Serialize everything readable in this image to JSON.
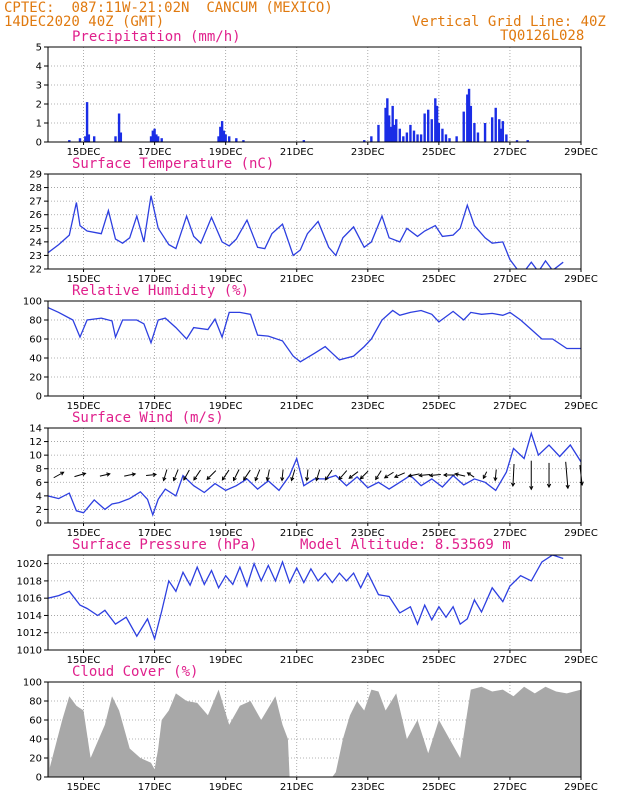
{
  "header": {
    "source": "CPTEC:",
    "coords": "087:11W-21:02N",
    "location": "CANCUM (MEXICO)",
    "start_time": "14DEC2020 40Z (GMT)",
    "grid_note": "Vertical Grid Line: 40Z",
    "code": "TQ0126L028"
  },
  "colors": {
    "header": "#e07a10",
    "title": "#e0208c",
    "line": "#2d3fe0",
    "bar": "#1a2de6",
    "cloud": "#a8a8a8",
    "grid": "#9a9a9a"
  },
  "x_axis": {
    "dates": [
      "15DEC",
      "17DEC",
      "19DEC",
      "21DEC",
      "23DEC",
      "25DEC",
      "27DEC",
      "29DEC"
    ],
    "start_day": 14,
    "end_day": 29
  },
  "chart_data": [
    {
      "type": "bar",
      "title": "Precipitation (mm/h)",
      "ylim": [
        0,
        5
      ],
      "yticks": [
        0,
        1,
        2,
        3,
        4,
        5
      ],
      "x": [
        14.6,
        14.9,
        15.05,
        15.1,
        15.15,
        15.3,
        15.9,
        16.0,
        16.05,
        16.9,
        16.95,
        17.0,
        17.05,
        17.1,
        17.2,
        18.8,
        18.85,
        18.9,
        18.95,
        19.0,
        19.1,
        19.3,
        19.5,
        21.2,
        22.9,
        23.1,
        23.3,
        23.5,
        23.55,
        23.6,
        23.65,
        23.7,
        23.75,
        23.8,
        23.9,
        24.0,
        24.1,
        24.2,
        24.3,
        24.4,
        24.5,
        24.6,
        24.7,
        24.8,
        24.9,
        24.95,
        25.0,
        25.1,
        25.2,
        25.3,
        25.5,
        25.7,
        25.8,
        25.85,
        25.9,
        26.0,
        26.1,
        26.3,
        26.5,
        26.6,
        26.7,
        26.75,
        26.8,
        26.9,
        27.2,
        27.5
      ],
      "values": [
        0.1,
        0.2,
        0.3,
        2.1,
        0.4,
        0.3,
        0.3,
        1.5,
        0.5,
        0.3,
        0.6,
        0.7,
        0.4,
        0.3,
        0.2,
        0.3,
        0.8,
        1.1,
        0.6,
        0.4,
        0.3,
        0.2,
        0.1,
        0.1,
        0.1,
        0.3,
        0.9,
        1.8,
        2.3,
        1.4,
        0.8,
        1.9,
        0.9,
        1.2,
        0.7,
        0.3,
        0.5,
        0.9,
        0.6,
        0.4,
        0.4,
        1.5,
        1.7,
        1.2,
        2.3,
        1.9,
        1.0,
        0.7,
        0.4,
        0.2,
        0.3,
        1.6,
        2.5,
        2.8,
        1.9,
        1.0,
        0.5,
        1.0,
        1.3,
        1.8,
        1.2,
        0.7,
        1.1,
        0.4,
        0.1,
        0.1
      ]
    },
    {
      "type": "line",
      "title": "Surface Temperature (nC)",
      "ylim": [
        22,
        29
      ],
      "yticks": [
        22,
        23,
        24,
        25,
        26,
        27,
        28,
        29
      ],
      "x": [
        14.0,
        14.3,
        14.6,
        14.8,
        14.9,
        15.1,
        15.5,
        15.7,
        15.9,
        16.1,
        16.3,
        16.5,
        16.7,
        16.9,
        17.1,
        17.4,
        17.6,
        17.9,
        18.1,
        18.3,
        18.6,
        18.9,
        19.1,
        19.3,
        19.6,
        19.9,
        20.1,
        20.3,
        20.6,
        20.9,
        21.1,
        21.3,
        21.6,
        21.9,
        22.1,
        22.3,
        22.6,
        22.9,
        23.1,
        23.4,
        23.6,
        23.9,
        24.1,
        24.4,
        24.6,
        24.9,
        25.1,
        25.4,
        25.6,
        25.8,
        26.0,
        26.3,
        26.5,
        26.8,
        27.0,
        27.2,
        27.4,
        27.6,
        27.8,
        28.0,
        28.2,
        28.5
      ],
      "values": [
        23.2,
        23.8,
        24.5,
        26.9,
        25.2,
        24.8,
        24.6,
        26.3,
        24.2,
        23.9,
        24.3,
        25.9,
        24.0,
        27.4,
        25.0,
        23.8,
        23.5,
        25.9,
        24.4,
        23.9,
        25.8,
        24.0,
        23.7,
        24.2,
        25.6,
        23.6,
        23.5,
        24.6,
        25.3,
        23.0,
        23.4,
        24.6,
        25.5,
        23.6,
        23.0,
        24.3,
        25.1,
        23.6,
        24.0,
        25.9,
        24.3,
        24.0,
        25.0,
        24.4,
        24.8,
        25.2,
        24.4,
        24.5,
        25.0,
        26.7,
        25.2,
        24.3,
        23.9,
        24.0,
        22.7,
        22.0,
        21.8,
        22.5,
        21.8,
        22.6,
        21.9,
        22.5
      ]
    },
    {
      "type": "line",
      "title": "Relative Humidity (%)",
      "ylim": [
        0,
        100
      ],
      "yticks": [
        0,
        20,
        40,
        60,
        80,
        100
      ],
      "x": [
        14.0,
        14.3,
        14.7,
        14.9,
        15.1,
        15.5,
        15.8,
        15.9,
        16.1,
        16.5,
        16.7,
        16.9,
        17.1,
        17.3,
        17.6,
        17.9,
        18.1,
        18.5,
        18.7,
        18.9,
        19.1,
        19.4,
        19.7,
        19.9,
        20.2,
        20.6,
        20.9,
        21.1,
        21.5,
        21.8,
        22.0,
        22.2,
        22.6,
        22.9,
        23.1,
        23.4,
        23.7,
        23.9,
        24.2,
        24.5,
        24.8,
        25.0,
        25.4,
        25.7,
        25.9,
        26.2,
        26.5,
        26.8,
        27.0,
        27.3,
        27.6,
        27.9,
        28.2,
        28.6,
        29.0
      ],
      "values": [
        93,
        88,
        80,
        62,
        80,
        82,
        79,
        62,
        80,
        80,
        76,
        56,
        80,
        82,
        72,
        60,
        72,
        70,
        81,
        62,
        88,
        88,
        86,
        64,
        63,
        58,
        42,
        36,
        45,
        52,
        45,
        38,
        42,
        52,
        60,
        80,
        90,
        85,
        88,
        90,
        86,
        78,
        89,
        80,
        88,
        86,
        87,
        85,
        88,
        80,
        70,
        60,
        60,
        50,
        50
      ]
    },
    {
      "type": "line",
      "title": "Surface Wind (m/s)",
      "ylim": [
        0,
        14
      ],
      "yticks": [
        0,
        2,
        4,
        6,
        8,
        10,
        12,
        14
      ],
      "x": [
        14.0,
        14.3,
        14.6,
        14.8,
        15.0,
        15.3,
        15.6,
        15.8,
        16.0,
        16.3,
        16.6,
        16.8,
        16.95,
        17.1,
        17.3,
        17.6,
        17.8,
        18.1,
        18.4,
        18.7,
        19.0,
        19.3,
        19.6,
        19.9,
        20.2,
        20.5,
        20.8,
        21.0,
        21.2,
        21.5,
        21.8,
        22.1,
        22.4,
        22.7,
        23.0,
        23.3,
        23.6,
        23.9,
        24.2,
        24.5,
        24.8,
        25.1,
        25.4,
        25.7,
        26.0,
        26.3,
        26.6,
        26.9,
        27.1,
        27.4,
        27.6,
        27.8,
        28.1,
        28.4,
        28.7,
        29.0
      ],
      "values": [
        4.0,
        3.6,
        4.4,
        1.8,
        1.5,
        3.4,
        2.0,
        2.8,
        3.0,
        3.6,
        4.6,
        3.5,
        1.2,
        3.5,
        5.0,
        4.0,
        7.0,
        5.5,
        4.5,
        5.8,
        4.8,
        5.5,
        6.5,
        5.0,
        6.2,
        4.8,
        7.0,
        9.5,
        5.5,
        6.5,
        6.5,
        7.0,
        5.5,
        6.8,
        5.2,
        6.0,
        5.0,
        6.0,
        7.0,
        5.5,
        6.5,
        5.3,
        7.0,
        5.6,
        6.5,
        6.0,
        4.8,
        7.5,
        11.0,
        9.5,
        13.2,
        10.0,
        11.5,
        9.8,
        11.5,
        9.0
      ]
    },
    {
      "type": "line",
      "title": "Surface Pressure (hPa)",
      "annotation": "Model Altitude: 8.53569 m",
      "ylim": [
        1010,
        1021
      ],
      "yticks": [
        1010,
        1012,
        1014,
        1016,
        1018,
        1020
      ],
      "x": [
        14.0,
        14.3,
        14.6,
        14.9,
        15.1,
        15.4,
        15.6,
        15.9,
        16.2,
        16.5,
        16.8,
        17.0,
        17.2,
        17.4,
        17.6,
        17.8,
        18.0,
        18.2,
        18.4,
        18.6,
        18.8,
        19.0,
        19.2,
        19.4,
        19.6,
        19.8,
        20.0,
        20.2,
        20.4,
        20.6,
        20.8,
        21.0,
        21.2,
        21.4,
        21.6,
        21.8,
        22.0,
        22.2,
        22.4,
        22.6,
        22.8,
        23.0,
        23.3,
        23.6,
        23.9,
        24.2,
        24.4,
        24.6,
        24.8,
        25.0,
        25.2,
        25.4,
        25.6,
        25.8,
        26.0,
        26.2,
        26.5,
        26.8,
        27.0,
        27.3,
        27.6,
        27.9,
        28.2,
        28.5
      ],
      "values": [
        1016.0,
        1016.3,
        1016.8,
        1015.2,
        1014.8,
        1014.0,
        1014.6,
        1013.0,
        1013.8,
        1011.6,
        1013.6,
        1011.3,
        1014.5,
        1018.0,
        1016.8,
        1019.0,
        1017.5,
        1019.6,
        1017.6,
        1019.2,
        1017.2,
        1018.6,
        1017.6,
        1019.6,
        1017.4,
        1020.0,
        1018.0,
        1019.8,
        1018.0,
        1020.2,
        1017.8,
        1019.5,
        1017.8,
        1019.4,
        1018.0,
        1018.9,
        1017.8,
        1018.9,
        1018.0,
        1018.9,
        1017.2,
        1018.9,
        1016.4,
        1016.2,
        1014.3,
        1015.0,
        1013.0,
        1015.2,
        1013.5,
        1015.0,
        1013.8,
        1015.0,
        1013.0,
        1013.6,
        1015.8,
        1014.4,
        1017.2,
        1015.6,
        1017.4,
        1018.6,
        1018.0,
        1020.2,
        1021.0,
        1020.6
      ]
    },
    {
      "type": "area",
      "title": "Cloud Cover (%)",
      "ylim": [
        0,
        100
      ],
      "yticks": [
        0,
        20,
        40,
        60,
        80,
        100
      ],
      "x": [
        14.0,
        14.05,
        14.4,
        14.6,
        14.8,
        15.0,
        15.2,
        15.6,
        15.8,
        16.0,
        16.3,
        16.6,
        16.9,
        17.0,
        17.1,
        17.2,
        17.4,
        17.6,
        17.9,
        18.2,
        18.5,
        18.8,
        19.1,
        19.4,
        19.7,
        20.0,
        20.4,
        20.6,
        20.75,
        20.8,
        21.0,
        22.0,
        22.1,
        22.3,
        22.5,
        22.7,
        22.9,
        23.1,
        23.3,
        23.5,
        23.8,
        24.1,
        24.4,
        24.7,
        25.0,
        25.3,
        25.6,
        25.9,
        26.2,
        26.5,
        26.8,
        27.1,
        27.4,
        27.7,
        28.0,
        28.3,
        28.6,
        29.0
      ],
      "values": [
        95,
        10,
        60,
        85,
        75,
        70,
        20,
        55,
        85,
        70,
        30,
        20,
        15,
        8,
        30,
        60,
        70,
        88,
        80,
        78,
        65,
        92,
        55,
        75,
        80,
        60,
        85,
        55,
        40,
        0,
        0,
        0,
        5,
        40,
        65,
        80,
        70,
        92,
        90,
        70,
        88,
        40,
        60,
        25,
        60,
        40,
        20,
        92,
        95,
        90,
        92,
        85,
        95,
        88,
        95,
        90,
        88,
        92
      ]
    }
  ],
  "wind_vectors": {
    "x": [
      14.3,
      14.9,
      15.6,
      16.3,
      16.9,
      17.3,
      17.6,
      17.9,
      18.2,
      18.6,
      19.0,
      19.3,
      19.6,
      19.9,
      20.2,
      20.6,
      20.9,
      21.3,
      21.6,
      21.9,
      22.3,
      22.6,
      22.9,
      23.3,
      23.6,
      23.9,
      24.3,
      24.6,
      24.9,
      25.3,
      25.6,
      25.9,
      26.3,
      26.6,
      27.1,
      27.6,
      28.1,
      28.6,
      29.0
    ],
    "u": [
      0.9,
      1.0,
      0.9,
      1.0,
      0.9,
      -0.3,
      -0.4,
      -0.5,
      -0.6,
      -0.8,
      -0.6,
      -0.5,
      -0.6,
      -0.4,
      -0.2,
      -0.1,
      -0.3,
      -0.1,
      -0.3,
      -0.6,
      -0.7,
      -0.8,
      -0.7,
      -0.5,
      -0.8,
      -0.9,
      -1.0,
      -1.0,
      -1.0,
      -1.0,
      -0.9,
      -0.6,
      -0.3,
      -0.1,
      -0.1,
      0.0,
      0.0,
      0.2,
      0.2
    ],
    "v": [
      0.5,
      0.3,
      0.2,
      0.2,
      0.1,
      -1.0,
      -1.0,
      -0.9,
      -0.9,
      -0.8,
      -0.9,
      -1.0,
      -0.9,
      -1.0,
      -1.0,
      -1.0,
      -1.0,
      -1.0,
      -1.0,
      -0.9,
      -0.8,
      -0.6,
      -0.7,
      -0.8,
      -0.5,
      -0.4,
      -0.2,
      -0.1,
      -0.1,
      0.0,
      0.2,
      0.4,
      -0.6,
      -1.0,
      -2.0,
      -2.6,
      -2.2,
      -2.4,
      -1.8
    ]
  }
}
